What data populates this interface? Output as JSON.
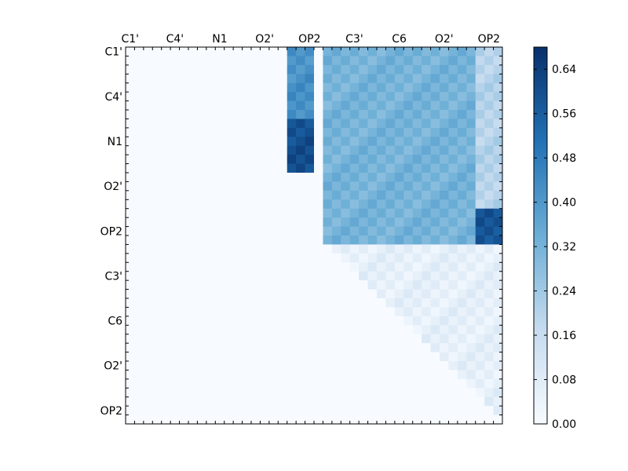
{
  "chart_data": {
    "type": "heatmap",
    "title": "",
    "xlabel": "",
    "ylabel": "",
    "n": 42,
    "x_tick_labels": [
      "C1'",
      "C4'",
      "N1",
      "O2'",
      "OP2",
      "C3'",
      "C6",
      "O2'",
      "OP2"
    ],
    "y_tick_labels": [
      "C1'",
      "C4'",
      "N1",
      "O2'",
      "OP2",
      "C3'",
      "C6",
      "O2'",
      "OP2"
    ],
    "tick_index_step": 5,
    "colormap": "Blues",
    "colors": {
      "low": "#f7fbff",
      "mid": "#6baed6",
      "high": "#08306b"
    },
    "color_range": [
      0.0,
      0.68
    ],
    "colorbar_ticks": [
      "0.00",
      "0.08",
      "0.16",
      "0.24",
      "0.32",
      "0.40",
      "0.48",
      "0.56",
      "0.64"
    ],
    "colorbar_tick_values": [
      0.0,
      0.08,
      0.16,
      0.24,
      0.32,
      0.4,
      0.48,
      0.56,
      0.64
    ],
    "regions": [
      {
        "rows": [
          0,
          7
        ],
        "cols": [
          18,
          20
        ],
        "value": 0.42,
        "note": "strong block near OP2 column (upper)"
      },
      {
        "rows": [
          8,
          13
        ],
        "cols": [
          18,
          20
        ],
        "value": 0.6,
        "note": "very strong block near OP2 column"
      },
      {
        "rows": [
          0,
          21
        ],
        "cols": [
          22,
          38
        ],
        "value": 0.32,
        "note": "medium band across C3'-O2' columns"
      },
      {
        "rows": [
          0,
          21
        ],
        "cols": [
          39,
          41
        ],
        "value": 0.2,
        "note": "lighter band near final OP2 columns"
      },
      {
        "rows": [
          18,
          21
        ],
        "cols": [
          39,
          41
        ],
        "value": 0.58,
        "note": "strong block in lower-right of upper band"
      },
      {
        "rows": [
          22,
          41
        ],
        "cols": [
          22,
          41
        ],
        "value": 0.06,
        "note": "faint lower triangular region"
      }
    ]
  }
}
